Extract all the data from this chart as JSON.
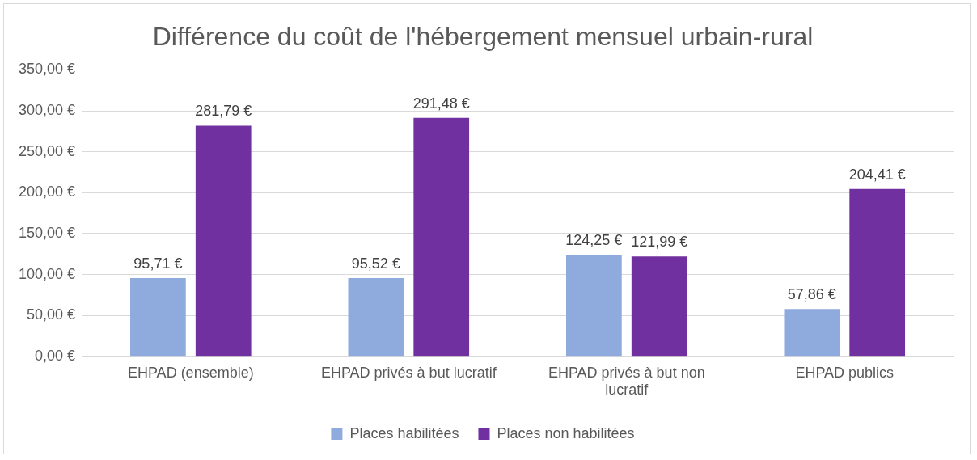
{
  "chart_data": {
    "type": "bar",
    "title": "Différence du coût de l'hébergement mensuel urbain-rural",
    "categories": [
      "EHPAD (ensemble)",
      "EHPAD privés à but lucratif",
      "EHPAD privés à but non lucratif",
      "EHPAD publics"
    ],
    "series": [
      {
        "name": "Places habilitées",
        "color": "#8faadc",
        "values": [
          95.71,
          95.52,
          124.25,
          57.86
        ],
        "value_labels": [
          "95,71 €",
          "95,52 €",
          "124,25 €",
          "57,86 €"
        ]
      },
      {
        "name": "Places non habilitées",
        "color": "#7030a0",
        "values": [
          281.79,
          291.48,
          121.99,
          204.41
        ],
        "value_labels": [
          "281,79 €",
          "291,48 €",
          "121,99 €",
          "204,41 €"
        ]
      }
    ],
    "ylim": [
      0,
      350
    ],
    "yticks": [
      {
        "value": 0,
        "label": "0,00 €"
      },
      {
        "value": 50,
        "label": "50,00 €"
      },
      {
        "value": 100,
        "label": "100,00 €"
      },
      {
        "value": 150,
        "label": "150,00 €"
      },
      {
        "value": 200,
        "label": "200,00 €"
      },
      {
        "value": 250,
        "label": "250,00 €"
      },
      {
        "value": 300,
        "label": "300,00 €"
      },
      {
        "value": 350,
        "label": "350,00 €"
      }
    ],
    "grid": "y",
    "legend": "bottom"
  }
}
